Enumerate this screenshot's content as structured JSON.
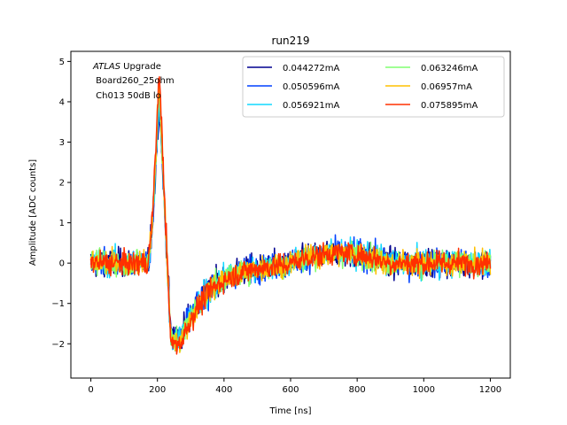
{
  "chart_data": {
    "type": "line",
    "title": "run219",
    "xlabel": "Time [ns]",
    "ylabel": "Amplitude [ADC counts]",
    "xlim": [
      -60,
      1260
    ],
    "ylim": [
      -2.85,
      5.25
    ],
    "xticks": [
      0,
      200,
      400,
      600,
      800,
      1000,
      1200
    ],
    "yticks": [
      -2,
      -1,
      0,
      1,
      2,
      3,
      4,
      5
    ],
    "grid": false,
    "legend_placement": "top-right",
    "legend_columns": 2,
    "annotation": {
      "line1_italic": "ATLAS",
      "line1_rest": " Upgrade",
      "line2": " Board260_25ohm",
      "line3": " Ch013 50dB lo"
    },
    "series": [
      {
        "name": "0.044272mA",
        "color": "#00008f",
        "noise": 0.32,
        "amp": 4.1,
        "under": 1.75
      },
      {
        "name": "0.050596mA",
        "color": "#0040ff",
        "noise": 0.3,
        "amp": 4.2,
        "under": 1.8
      },
      {
        "name": "0.056921mA",
        "color": "#10d8ff",
        "noise": 0.3,
        "amp": 4.3,
        "under": 1.85
      },
      {
        "name": "0.063246mA",
        "color": "#80ff70",
        "noise": 0.28,
        "amp": 4.5,
        "under": 1.9
      },
      {
        "name": "0.06957mA",
        "color": "#ffc000",
        "noise": 0.28,
        "amp": 4.6,
        "under": 1.95
      },
      {
        "name": "0.075895mA",
        "color": "#ff3000",
        "noise": 0.27,
        "amp": 4.85,
        "under": 2.0
      }
    ],
    "x_start": 0,
    "x_end": 1200,
    "x_step": 1.5625
  }
}
